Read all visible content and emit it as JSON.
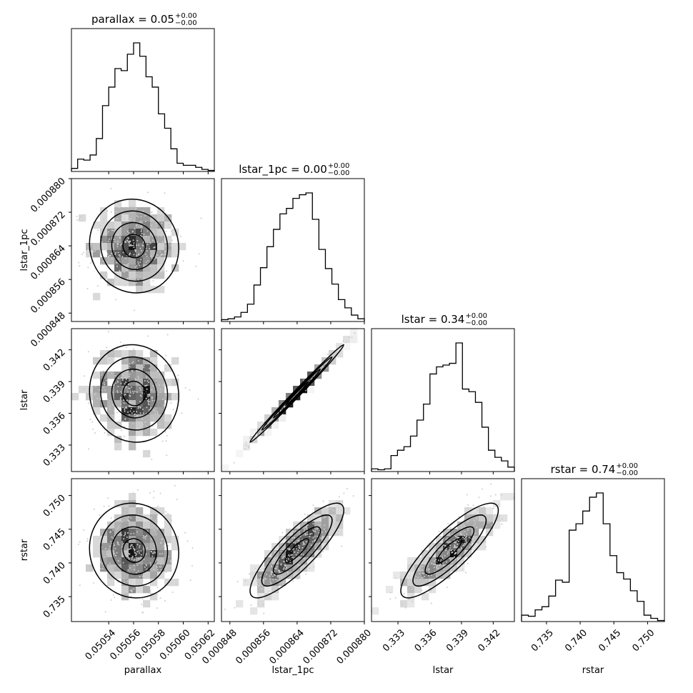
{
  "chart_data": {
    "type": "corner",
    "parameters": [
      "parallax",
      "lstar_1pc",
      "lstar",
      "rstar"
    ],
    "titles": [
      {
        "main": "parallax = 0.05",
        "sup": "+0.00",
        "sub": "−0.00"
      },
      {
        "main": "lstar_1pc = 0.00",
        "sup": "+0.00",
        "sub": "−0.00"
      },
      {
        "main": "lstar = 0.34",
        "sup": "+0.00",
        "sub": "−0.00"
      },
      {
        "main": "rstar = 0.74",
        "sup": "+0.00",
        "sub": "−0.00"
      }
    ],
    "axes": [
      {
        "name": "parallax",
        "lim": [
          0.05051,
          0.050625
        ],
        "ticks": [
          0.05054,
          0.05056,
          0.05058,
          0.0506,
          0.05062
        ],
        "tick_labels": [
          "0.05054",
          "0.05056",
          "0.05058",
          "0.05060",
          "0.05062"
        ]
      },
      {
        "name": "lstar_1pc",
        "lim": [
          0.000846,
          0.00088
        ],
        "ticks": [
          0.000848,
          0.000856,
          0.000864,
          0.000872,
          0.00088
        ],
        "tick_labels": [
          "0.000848",
          "0.000856",
          "0.000864",
          "0.000872",
          "0.000880"
        ]
      },
      {
        "name": "lstar",
        "lim": [
          0.3305,
          0.344
        ],
        "ticks": [
          0.333,
          0.336,
          0.339,
          0.342
        ],
        "tick_labels": [
          "0.333",
          "0.336",
          "0.339",
          "0.342"
        ]
      },
      {
        "name": "rstar",
        "lim": [
          0.7313,
          0.7525
        ],
        "ticks": [
          0.735,
          0.74,
          0.745,
          0.75
        ],
        "tick_labels": [
          "0.735",
          "0.740",
          "0.745",
          "0.750"
        ]
      }
    ],
    "histograms": [
      {
        "param": "parallax",
        "counts": [
          3,
          12,
          11,
          16,
          32,
          64,
          82,
          100,
          98,
          114,
          125,
          112,
          92,
          82,
          56,
          42,
          22,
          8,
          6,
          6,
          4,
          2,
          1
        ]
      },
      {
        "param": "lstar_1pc",
        "counts": [
          2,
          3,
          5,
          10,
          19,
          40,
          59,
          82,
          101,
          118,
          124,
          135,
          139,
          141,
          112,
          79,
          58,
          41,
          24,
          15,
          7,
          3
        ]
      },
      {
        "param": "lstar",
        "counts": [
          3,
          2,
          3,
          18,
          24,
          28,
          40,
          58,
          76,
          110,
          118,
          120,
          122,
          145,
          93,
          90,
          78,
          50,
          24,
          16,
          12,
          5
        ]
      },
      {
        "param": "rstar",
        "counts": [
          6,
          5,
          11,
          14,
          24,
          39,
          37,
          86,
          92,
          104,
          117,
          121,
          92,
          62,
          46,
          40,
          29,
          19,
          6,
          3,
          1
        ]
      }
    ],
    "correlation": [
      [
        "",
        "",
        "",
        ""
      ],
      [
        -0.05,
        "",
        "",
        ""
      ],
      [
        -0.05,
        0.995,
        "",
        ""
      ],
      [
        -0.05,
        0.85,
        0.85,
        ""
      ]
    ],
    "hist_color": "#000000",
    "contour_color": "#000000"
  }
}
